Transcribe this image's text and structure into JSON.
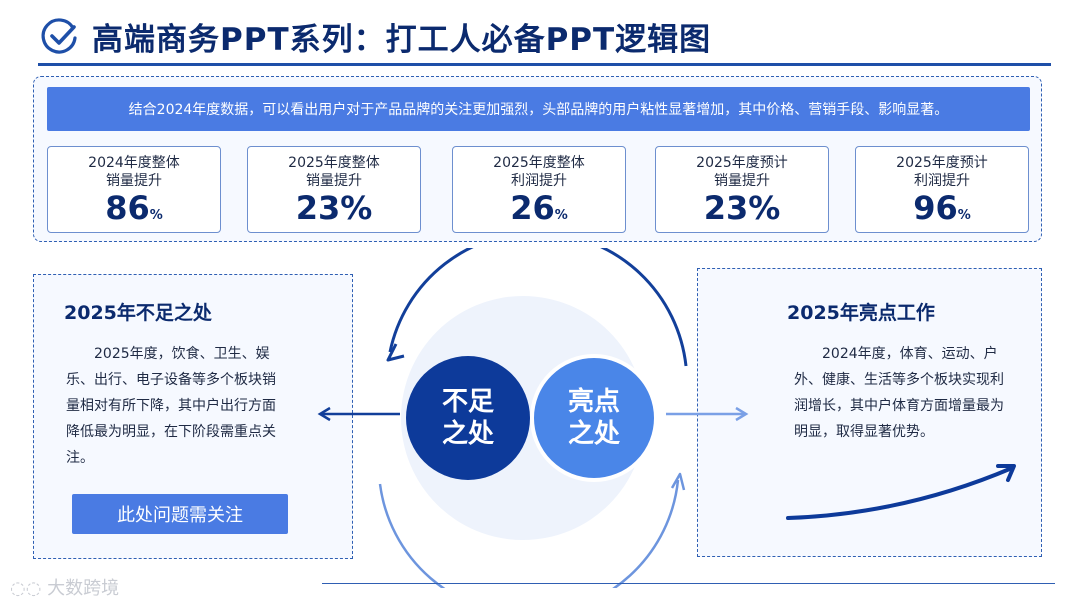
{
  "header": {
    "title": "高端商务PPT系列：打工人必备PPT逻辑图"
  },
  "summary": {
    "text": "结合2024年度数据，可以看出用户对于产品品牌的关注更加强烈，头部品牌的用户粘性显著增加，其中价格、营销手段、影响显著。"
  },
  "stats": [
    {
      "line1": "2024年度整体",
      "line2": "销量提升",
      "value": "86",
      "unit": "%"
    },
    {
      "line1": "2025年度整体",
      "line2": "销量提升",
      "value": "23%",
      "unit": ""
    },
    {
      "line1": "2025年度整体",
      "line2": "利润提升",
      "value": "26",
      "unit": "%"
    },
    {
      "line1": "2025年度预计",
      "line2": "销量提升",
      "value": "23%",
      "unit": ""
    },
    {
      "line1": "2025年度预计",
      "line2": "利润提升",
      "value": "96",
      "unit": "%"
    }
  ],
  "left": {
    "heading": "2025年不足之处",
    "body": "2025年度，饮食、卫生、娱乐、出行、电子设备等多个板块销量相对有所下降，其中户出行方面降低最为明显，在下阶段需重点关注。",
    "button": "此处问题需关注"
  },
  "right": {
    "heading": "2025年亮点工作",
    "body": "2024年度，体育、运动、户外、健康、生活等多个板块实现利润增长，其中户体育方面增量最为明显，取得显著优势。"
  },
  "center": {
    "left_circle": {
      "line1": "不足",
      "line2": "之处"
    },
    "right_circle": {
      "line1": "亮点",
      "line2": "之处"
    }
  },
  "watermark": {
    "text": "大数跨境"
  },
  "colors": {
    "dark_blue": "#0b2a6e",
    "accent_blue": "#4a7be3",
    "navy_circle": "#0d3a9a",
    "light_circle": "#4a86e8"
  }
}
